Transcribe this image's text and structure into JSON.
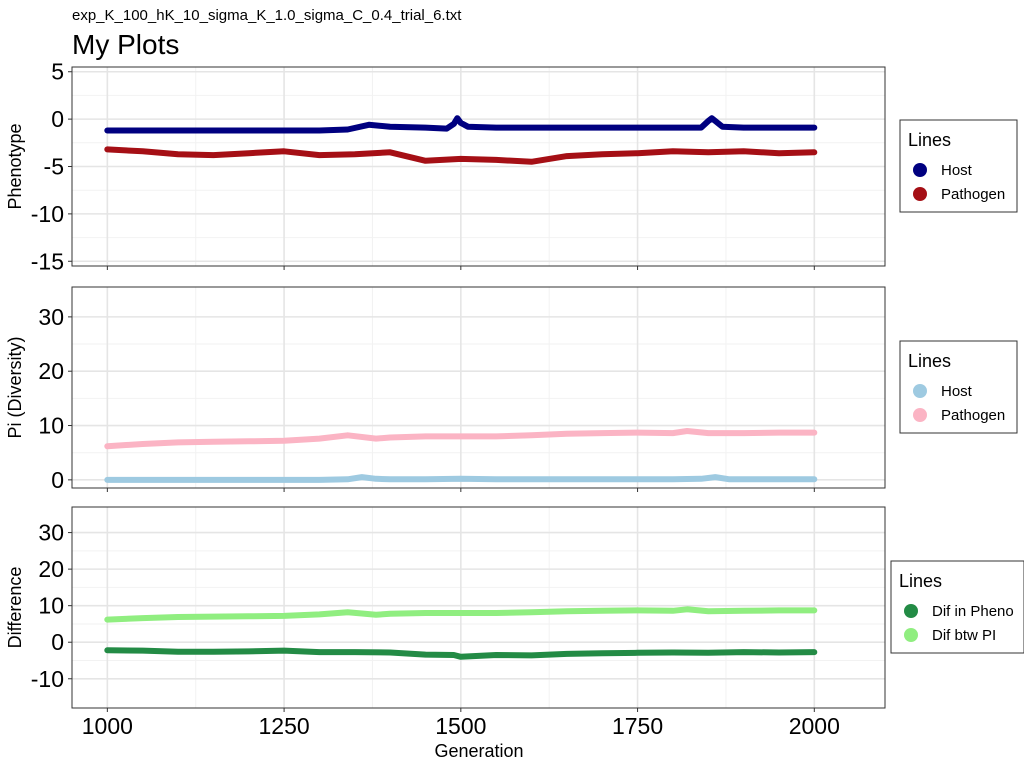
{
  "subtitle": "exp_K_100_hK_10_sigma_K_1.0_sigma_C_0.4_trial_6.txt",
  "title": "My Plots",
  "xlabel": "Generation",
  "chart_data": [
    {
      "type": "line",
      "ylabel": "Phenotype",
      "xlim": [
        950,
        2100
      ],
      "ylim": [
        -15.5,
        5.5
      ],
      "yticks": [
        -15,
        -10,
        -5,
        0,
        5
      ],
      "xticks": [
        1000,
        1250,
        1500,
        1750,
        2000
      ],
      "legend": {
        "title": "Lines",
        "placement": "right"
      },
      "series": [
        {
          "name": "Host",
          "color": "#000080",
          "x": [
            1000,
            1100,
            1200,
            1300,
            1340,
            1370,
            1400,
            1450,
            1480,
            1490,
            1495,
            1500,
            1510,
            1550,
            1600,
            1700,
            1800,
            1840,
            1850,
            1855,
            1870,
            1900,
            1950,
            2000
          ],
          "y": [
            -1.2,
            -1.2,
            -1.2,
            -1.2,
            -1.1,
            -0.6,
            -0.8,
            -0.9,
            -1.0,
            -0.5,
            0.1,
            -0.4,
            -0.8,
            -0.9,
            -0.9,
            -0.9,
            -0.9,
            -0.9,
            -0.2,
            0.1,
            -0.8,
            -0.9,
            -0.9,
            -0.9
          ]
        },
        {
          "name": "Pathogen",
          "color": "#a50f15",
          "x": [
            1000,
            1050,
            1100,
            1150,
            1200,
            1250,
            1300,
            1350,
            1400,
            1450,
            1500,
            1550,
            1600,
            1650,
            1700,
            1750,
            1800,
            1850,
            1900,
            1950,
            2000
          ],
          "y": [
            -3.2,
            -3.4,
            -3.7,
            -3.8,
            -3.6,
            -3.4,
            -3.8,
            -3.7,
            -3.5,
            -4.4,
            -4.2,
            -4.3,
            -4.5,
            -3.9,
            -3.7,
            -3.6,
            -3.4,
            -3.5,
            -3.4,
            -3.6,
            -3.5
          ]
        }
      ]
    },
    {
      "type": "line",
      "ylabel": "Pi (Diversity)",
      "xlim": [
        950,
        2100
      ],
      "ylim": [
        -1.5,
        35.5
      ],
      "yticks": [
        0,
        10,
        20,
        30
      ],
      "xticks": [
        1000,
        1250,
        1500,
        1750,
        2000
      ],
      "legend": {
        "title": "Lines",
        "placement": "right"
      },
      "series": [
        {
          "name": "Host",
          "color": "#9ecae1",
          "x": [
            1000,
            1100,
            1200,
            1300,
            1340,
            1360,
            1380,
            1400,
            1450,
            1500,
            1550,
            1600,
            1700,
            1800,
            1840,
            1860,
            1880,
            1900,
            1950,
            2000
          ],
          "y": [
            0.0,
            0.0,
            0.0,
            0.0,
            0.1,
            0.5,
            0.2,
            0.1,
            0.1,
            0.2,
            0.1,
            0.1,
            0.1,
            0.1,
            0.2,
            0.5,
            0.1,
            0.1,
            0.1,
            0.1
          ]
        },
        {
          "name": "Pathogen",
          "color": "#fbb4c4",
          "x": [
            1000,
            1050,
            1100,
            1150,
            1200,
            1250,
            1300,
            1340,
            1380,
            1400,
            1450,
            1500,
            1550,
            1600,
            1650,
            1700,
            1750,
            1800,
            1820,
            1850,
            1900,
            1950,
            2000
          ],
          "y": [
            6.2,
            6.6,
            6.9,
            7.0,
            7.1,
            7.2,
            7.6,
            8.2,
            7.6,
            7.8,
            8.0,
            8.0,
            8.0,
            8.2,
            8.5,
            8.6,
            8.7,
            8.6,
            9.0,
            8.6,
            8.6,
            8.7,
            8.7
          ]
        }
      ]
    },
    {
      "type": "line",
      "ylabel": "Difference",
      "xlim": [
        950,
        2100
      ],
      "ylim": [
        -18,
        37
      ],
      "yticks": [
        -10,
        0,
        10,
        20,
        30
      ],
      "xticks": [
        1000,
        1250,
        1500,
        1750,
        2000
      ],
      "legend": {
        "title": "Lines",
        "placement": "right"
      },
      "series": [
        {
          "name": "Dif in Pheno",
          "color": "#238b45",
          "x": [
            1000,
            1050,
            1100,
            1150,
            1200,
            1250,
            1300,
            1350,
            1400,
            1450,
            1490,
            1500,
            1550,
            1600,
            1650,
            1700,
            1750,
            1800,
            1850,
            1900,
            1950,
            2000
          ],
          "y": [
            -2.2,
            -2.3,
            -2.6,
            -2.6,
            -2.5,
            -2.3,
            -2.7,
            -2.7,
            -2.8,
            -3.4,
            -3.5,
            -4.0,
            -3.5,
            -3.6,
            -3.2,
            -3.0,
            -2.9,
            -2.8,
            -2.9,
            -2.7,
            -2.8,
            -2.7
          ]
        },
        {
          "name": "Dif btw PI",
          "color": "#90ee80",
          "x": [
            1000,
            1050,
            1100,
            1150,
            1200,
            1250,
            1300,
            1340,
            1380,
            1400,
            1450,
            1500,
            1550,
            1600,
            1650,
            1700,
            1750,
            1800,
            1820,
            1850,
            1900,
            1950,
            2000
          ],
          "y": [
            6.2,
            6.6,
            6.9,
            7.0,
            7.1,
            7.2,
            7.6,
            8.2,
            7.5,
            7.8,
            8.0,
            8.0,
            8.0,
            8.2,
            8.5,
            8.6,
            8.7,
            8.6,
            9.0,
            8.5,
            8.6,
            8.7,
            8.7
          ]
        }
      ]
    }
  ]
}
